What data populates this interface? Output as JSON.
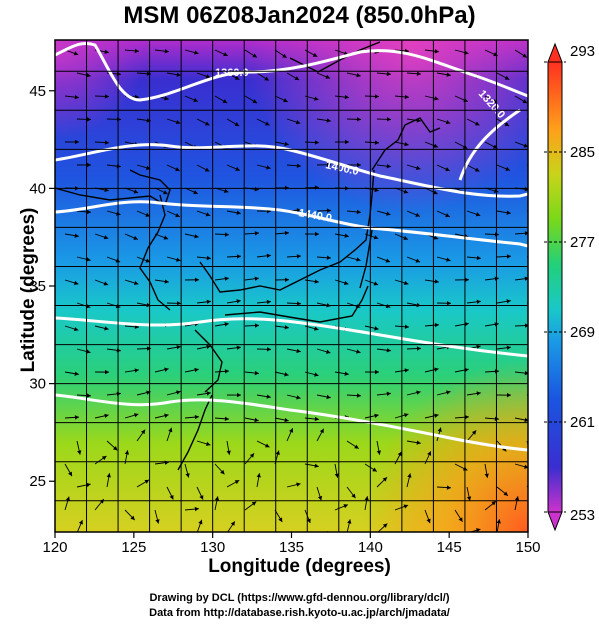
{
  "title": "MSM 06Z08Jan2024 (850.0hPa)",
  "map": {
    "x_label": "Longitude (degrees)",
    "y_label": "Latitude  (degrees)",
    "lon_range": [
      120,
      150
    ],
    "lat_range": [
      22.4,
      47.6
    ],
    "lon_ticks": [
      "120",
      "125",
      "130",
      "135",
      "140",
      "145",
      "150"
    ],
    "lat_ticks": [
      "25",
      "30",
      "35",
      "40",
      "45"
    ],
    "contour_labels": [
      "1360.0",
      "1320.0",
      "1400.0",
      "1440.0"
    ],
    "field": "temperature with streamlines and geopotential height contours"
  },
  "colorbar": {
    "min": 253,
    "max": 293,
    "ticks": [
      "293",
      "285",
      "277",
      "269",
      "261",
      "253"
    ],
    "colors": [
      "#cc33cc",
      "#2222cc",
      "#1a6ee6",
      "#19c6d0",
      "#22d07a",
      "#9fdc1a",
      "#d8d020",
      "#ff7a1a",
      "#ff3020"
    ]
  },
  "credits": {
    "line1": "Drawing by DCL (https://www.gfd-dennou.org/library/dcl/)",
    "line2": "Data from http://database.rish.kyoto-u.ac.jp/arch/jmadata/"
  }
}
